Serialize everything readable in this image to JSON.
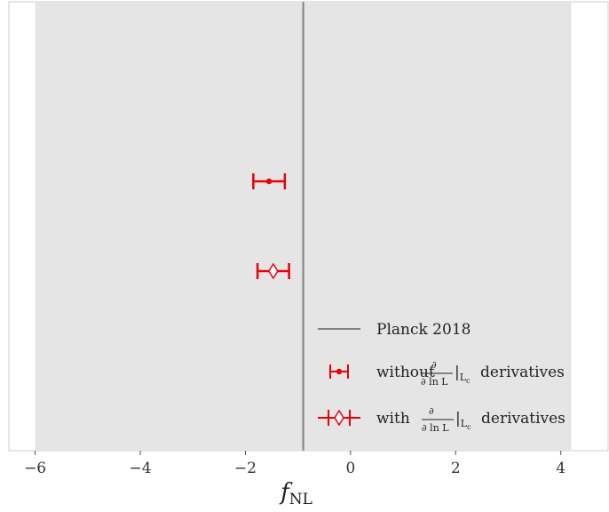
{
  "chart_data": {
    "type": "scatter",
    "title": "",
    "xlabel": "f",
    "xlabel_sub": "NL",
    "ylabel": "",
    "xlim": [
      -6.5,
      4.9
    ],
    "xticks": [
      -6,
      -4,
      -2,
      0,
      2,
      4
    ],
    "xtick_labels": [
      "−6",
      "−4",
      "−2",
      "0",
      "2",
      "4"
    ],
    "grid": false,
    "shaded_band": {
      "x0": -6,
      "x1": 4.2,
      "color": "#e5e5e5"
    },
    "reference_line": {
      "x": -0.9,
      "label": "Planck 2018",
      "color": "#808080"
    },
    "series": [
      {
        "name": "without ∂/∂lnL|Lc derivatives",
        "name_parts": {
          "prefix": "without",
          "suffix": "derivatives"
        },
        "marker": "dot",
        "color": "#e8000b",
        "points": [
          {
            "x": -1.55,
            "err_low": 0.3,
            "err_high": 0.3,
            "row": 1
          }
        ]
      },
      {
        "name": "with ∂/∂lnL|Lc derivatives",
        "name_parts": {
          "prefix": "with",
          "suffix": "derivatives"
        },
        "marker": "diamond",
        "color": "#e8000b",
        "points": [
          {
            "x": -1.47,
            "err_low": 0.3,
            "err_high": 0.3,
            "row": 2
          }
        ]
      }
    ],
    "legend": {
      "placement": "lower-right",
      "entries": [
        "Planck 2018",
        "without ∂/∂lnL|Lc derivatives",
        "with ∂/∂lnL|Lc derivatives"
      ]
    }
  }
}
